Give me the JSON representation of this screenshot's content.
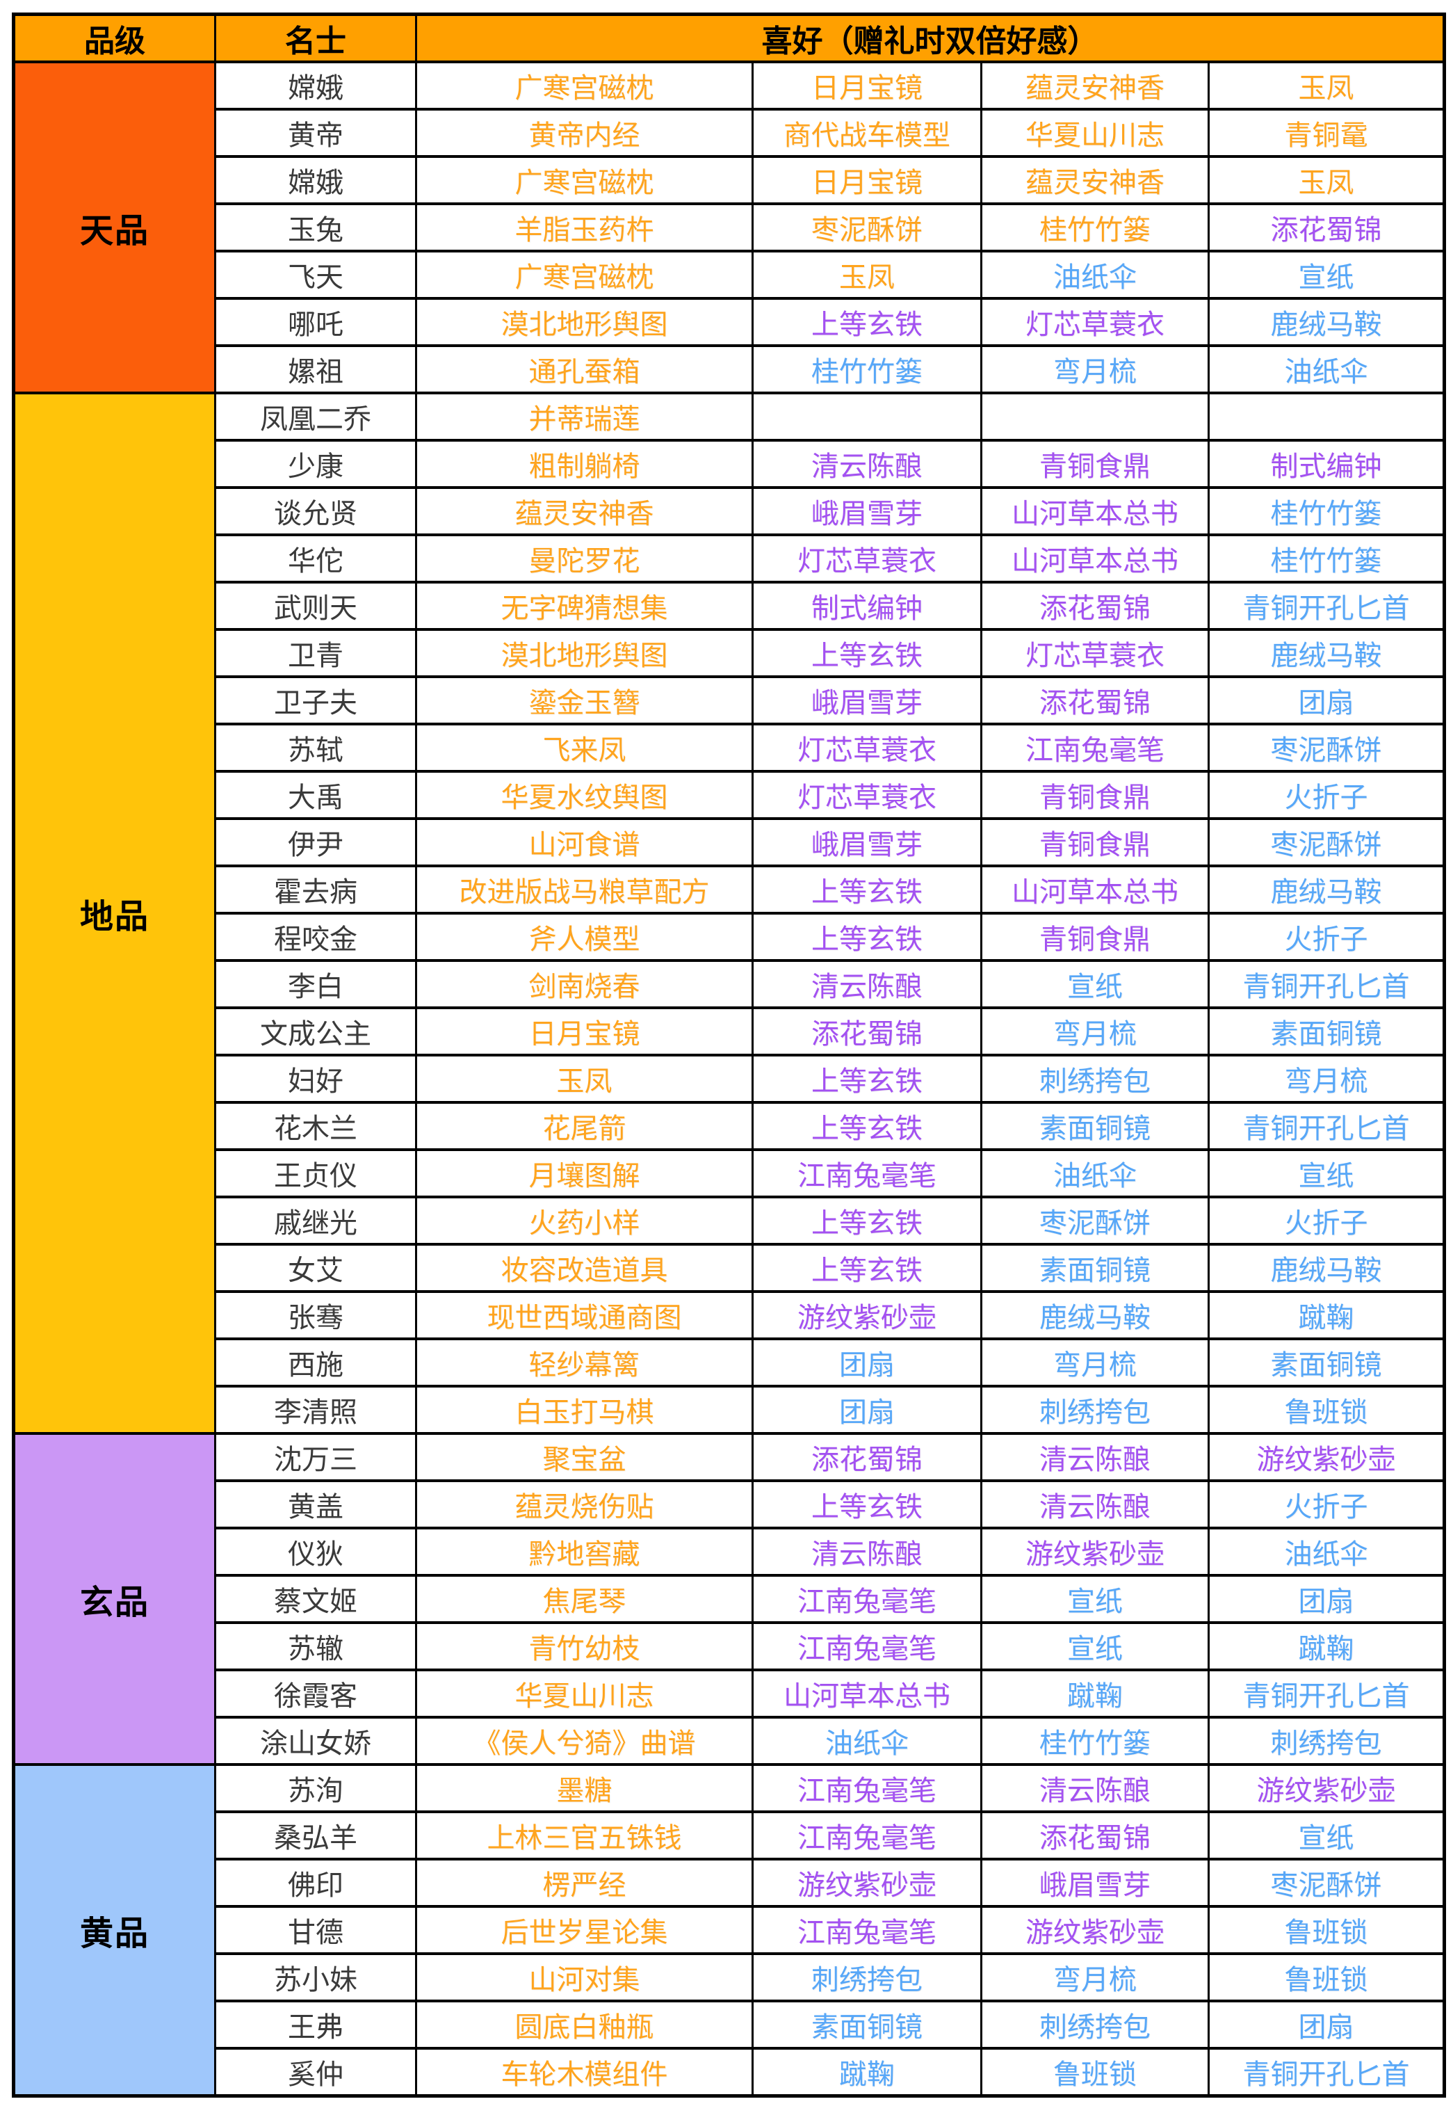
{
  "header": {
    "col_grade": "品级",
    "col_name": "名士",
    "col_likes": "喜好（赠礼时双倍好感）"
  },
  "colors": {
    "header_bg": "#FFA000",
    "grade_tian_bg": "#FB5E0B",
    "grade_di_bg": "#FFC40A",
    "grade_xuan_bg": "#CB97F5",
    "grade_huang_bg": "#9FC7FB",
    "text_orange": "#FFA41E",
    "text_purple": "#A351F1",
    "text_blue": "#57A7F8",
    "name_text": "#3A3A3A",
    "border": "#000000",
    "cell_bg": "#FFFFFF"
  },
  "groups": [
    {
      "grade": "天品",
      "band_color_key": "grade_tian_bg",
      "rows": [
        {
          "name": "嫦娥",
          "items": [
            {
              "t": "广寒宫磁枕",
              "c": "orange"
            },
            {
              "t": "日月宝镜",
              "c": "orange"
            },
            {
              "t": "蕴灵安神香",
              "c": "orange"
            },
            {
              "t": "玉凤",
              "c": "orange"
            }
          ]
        },
        {
          "name": "黄帝",
          "items": [
            {
              "t": "黄帝内经",
              "c": "orange"
            },
            {
              "t": "商代战车模型",
              "c": "orange"
            },
            {
              "t": "华夏山川志",
              "c": "orange"
            },
            {
              "t": "青铜鼋",
              "c": "orange"
            }
          ]
        },
        {
          "name": "嫦娥",
          "items": [
            {
              "t": "广寒宫磁枕",
              "c": "orange"
            },
            {
              "t": "日月宝镜",
              "c": "orange"
            },
            {
              "t": "蕴灵安神香",
              "c": "orange"
            },
            {
              "t": "玉凤",
              "c": "orange"
            }
          ]
        },
        {
          "name": "玉兔",
          "items": [
            {
              "t": "羊脂玉药杵",
              "c": "orange"
            },
            {
              "t": "枣泥酥饼",
              "c": "orange"
            },
            {
              "t": "桂竹竹篓",
              "c": "orange"
            },
            {
              "t": "添花蜀锦",
              "c": "purple"
            }
          ]
        },
        {
          "name": "飞天",
          "items": [
            {
              "t": "广寒宫磁枕",
              "c": "orange"
            },
            {
              "t": "玉凤",
              "c": "orange"
            },
            {
              "t": "油纸伞",
              "c": "blue"
            },
            {
              "t": "宣纸",
              "c": "blue"
            }
          ]
        },
        {
          "name": "哪吒",
          "items": [
            {
              "t": "漠北地形舆图",
              "c": "orange"
            },
            {
              "t": "上等玄铁",
              "c": "purple"
            },
            {
              "t": "灯芯草蓑衣",
              "c": "purple"
            },
            {
              "t": "鹿绒马鞍",
              "c": "blue"
            }
          ]
        },
        {
          "name": "嫘祖",
          "items": [
            {
              "t": "通孔蚕箱",
              "c": "orange"
            },
            {
              "t": "桂竹竹篓",
              "c": "blue"
            },
            {
              "t": "弯月梳",
              "c": "blue"
            },
            {
              "t": "油纸伞",
              "c": "blue"
            }
          ]
        }
      ]
    },
    {
      "grade": "地品",
      "band_color_key": "grade_di_bg",
      "rows": [
        {
          "name": "凤凰二乔",
          "items": [
            {
              "t": "并蒂瑞莲",
              "c": "orange"
            },
            null,
            null,
            null
          ]
        },
        {
          "name": "少康",
          "items": [
            {
              "t": "粗制躺椅",
              "c": "orange"
            },
            {
              "t": "清云陈酿",
              "c": "purple"
            },
            {
              "t": "青铜食鼎",
              "c": "purple"
            },
            {
              "t": "制式编钟",
              "c": "purple"
            }
          ]
        },
        {
          "name": "谈允贤",
          "items": [
            {
              "t": "蕴灵安神香",
              "c": "orange"
            },
            {
              "t": "峨眉雪芽",
              "c": "purple"
            },
            {
              "t": "山河草本总书",
              "c": "purple"
            },
            {
              "t": "桂竹竹篓",
              "c": "blue"
            }
          ]
        },
        {
          "name": "华佗",
          "items": [
            {
              "t": "曼陀罗花",
              "c": "orange"
            },
            {
              "t": "灯芯草蓑衣",
              "c": "purple"
            },
            {
              "t": "山河草本总书",
              "c": "purple"
            },
            {
              "t": "桂竹竹篓",
              "c": "blue"
            }
          ]
        },
        {
          "name": "武则天",
          "items": [
            {
              "t": "无字碑猜想集",
              "c": "orange"
            },
            {
              "t": "制式编钟",
              "c": "purple"
            },
            {
              "t": "添花蜀锦",
              "c": "purple"
            },
            {
              "t": "青铜开孔匕首",
              "c": "blue"
            }
          ]
        },
        {
          "name": "卫青",
          "items": [
            {
              "t": "漠北地形舆图",
              "c": "orange"
            },
            {
              "t": "上等玄铁",
              "c": "purple"
            },
            {
              "t": "灯芯草蓑衣",
              "c": "purple"
            },
            {
              "t": "鹿绒马鞍",
              "c": "blue"
            }
          ]
        },
        {
          "name": "卫子夫",
          "items": [
            {
              "t": "鎏金玉簪",
              "c": "orange"
            },
            {
              "t": "峨眉雪芽",
              "c": "purple"
            },
            {
              "t": "添花蜀锦",
              "c": "purple"
            },
            {
              "t": "团扇",
              "c": "blue"
            }
          ]
        },
        {
          "name": "苏轼",
          "items": [
            {
              "t": "飞来凤",
              "c": "orange"
            },
            {
              "t": "灯芯草蓑衣",
              "c": "purple"
            },
            {
              "t": "江南兔毫笔",
              "c": "purple"
            },
            {
              "t": "枣泥酥饼",
              "c": "blue"
            }
          ]
        },
        {
          "name": "大禹",
          "items": [
            {
              "t": "华夏水纹舆图",
              "c": "orange"
            },
            {
              "t": "灯芯草蓑衣",
              "c": "purple"
            },
            {
              "t": "青铜食鼎",
              "c": "purple"
            },
            {
              "t": "火折子",
              "c": "blue"
            }
          ]
        },
        {
          "name": "伊尹",
          "items": [
            {
              "t": "山河食谱",
              "c": "orange"
            },
            {
              "t": "峨眉雪芽",
              "c": "purple"
            },
            {
              "t": "青铜食鼎",
              "c": "purple"
            },
            {
              "t": "枣泥酥饼",
              "c": "blue"
            }
          ]
        },
        {
          "name": "霍去病",
          "items": [
            {
              "t": "改进版战马粮草配方",
              "c": "orange"
            },
            {
              "t": "上等玄铁",
              "c": "purple"
            },
            {
              "t": "山河草本总书",
              "c": "purple"
            },
            {
              "t": "鹿绒马鞍",
              "c": "blue"
            }
          ]
        },
        {
          "name": "程咬金",
          "items": [
            {
              "t": "斧人模型",
              "c": "orange"
            },
            {
              "t": "上等玄铁",
              "c": "purple"
            },
            {
              "t": "青铜食鼎",
              "c": "purple"
            },
            {
              "t": "火折子",
              "c": "blue"
            }
          ]
        },
        {
          "name": "李白",
          "items": [
            {
              "t": "剑南烧春",
              "c": "orange"
            },
            {
              "t": "清云陈酿",
              "c": "purple"
            },
            {
              "t": "宣纸",
              "c": "blue"
            },
            {
              "t": "青铜开孔匕首",
              "c": "blue"
            }
          ]
        },
        {
          "name": "文成公主",
          "items": [
            {
              "t": "日月宝镜",
              "c": "orange"
            },
            {
              "t": "添花蜀锦",
              "c": "purple"
            },
            {
              "t": "弯月梳",
              "c": "blue"
            },
            {
              "t": "素面铜镜",
              "c": "blue"
            }
          ]
        },
        {
          "name": "妇好",
          "items": [
            {
              "t": "玉凤",
              "c": "orange"
            },
            {
              "t": "上等玄铁",
              "c": "purple"
            },
            {
              "t": "刺绣挎包",
              "c": "blue"
            },
            {
              "t": "弯月梳",
              "c": "blue"
            }
          ]
        },
        {
          "name": "花木兰",
          "items": [
            {
              "t": "花尾箭",
              "c": "orange"
            },
            {
              "t": "上等玄铁",
              "c": "purple"
            },
            {
              "t": "素面铜镜",
              "c": "blue"
            },
            {
              "t": "青铜开孔匕首",
              "c": "blue"
            }
          ]
        },
        {
          "name": "王贞仪",
          "items": [
            {
              "t": "月壤图解",
              "c": "orange"
            },
            {
              "t": "江南兔毫笔",
              "c": "purple"
            },
            {
              "t": "油纸伞",
              "c": "blue"
            },
            {
              "t": "宣纸",
              "c": "blue"
            }
          ]
        },
        {
          "name": "戚继光",
          "items": [
            {
              "t": "火药小样",
              "c": "orange"
            },
            {
              "t": "上等玄铁",
              "c": "purple"
            },
            {
              "t": "枣泥酥饼",
              "c": "blue"
            },
            {
              "t": "火折子",
              "c": "blue"
            }
          ]
        },
        {
          "name": "女艾",
          "items": [
            {
              "t": "妆容改造道具",
              "c": "orange"
            },
            {
              "t": "上等玄铁",
              "c": "purple"
            },
            {
              "t": "素面铜镜",
              "c": "blue"
            },
            {
              "t": "鹿绒马鞍",
              "c": "blue"
            }
          ]
        },
        {
          "name": "张骞",
          "items": [
            {
              "t": "现世西域通商图",
              "c": "orange"
            },
            {
              "t": "游纹紫砂壶",
              "c": "purple"
            },
            {
              "t": "鹿绒马鞍",
              "c": "blue"
            },
            {
              "t": "蹴鞠",
              "c": "blue"
            }
          ]
        },
        {
          "name": "西施",
          "items": [
            {
              "t": "轻纱幕篱",
              "c": "orange"
            },
            {
              "t": "团扇",
              "c": "blue"
            },
            {
              "t": "弯月梳",
              "c": "blue"
            },
            {
              "t": "素面铜镜",
              "c": "blue"
            }
          ]
        },
        {
          "name": "李清照",
          "items": [
            {
              "t": "白玉打马棋",
              "c": "orange"
            },
            {
              "t": "团扇",
              "c": "blue"
            },
            {
              "t": "刺绣挎包",
              "c": "blue"
            },
            {
              "t": "鲁班锁",
              "c": "blue"
            }
          ]
        }
      ]
    },
    {
      "grade": "玄品",
      "band_color_key": "grade_xuan_bg",
      "rows": [
        {
          "name": "沈万三",
          "items": [
            {
              "t": "聚宝盆",
              "c": "orange"
            },
            {
              "t": "添花蜀锦",
              "c": "purple"
            },
            {
              "t": "清云陈酿",
              "c": "purple"
            },
            {
              "t": "游纹紫砂壶",
              "c": "purple"
            }
          ]
        },
        {
          "name": "黄盖",
          "items": [
            {
              "t": "蕴灵烧伤贴",
              "c": "orange"
            },
            {
              "t": "上等玄铁",
              "c": "purple"
            },
            {
              "t": "清云陈酿",
              "c": "purple"
            },
            {
              "t": "火折子",
              "c": "blue"
            }
          ]
        },
        {
          "name": "仪狄",
          "items": [
            {
              "t": "黔地窖藏",
              "c": "orange"
            },
            {
              "t": "清云陈酿",
              "c": "purple"
            },
            {
              "t": "游纹紫砂壶",
              "c": "purple"
            },
            {
              "t": "油纸伞",
              "c": "blue"
            }
          ]
        },
        {
          "name": "蔡文姬",
          "items": [
            {
              "t": "焦尾琴",
              "c": "orange"
            },
            {
              "t": "江南兔毫笔",
              "c": "purple"
            },
            {
              "t": "宣纸",
              "c": "blue"
            },
            {
              "t": "团扇",
              "c": "blue"
            }
          ]
        },
        {
          "name": "苏辙",
          "items": [
            {
              "t": "青竹幼枝",
              "c": "orange"
            },
            {
              "t": "江南兔毫笔",
              "c": "purple"
            },
            {
              "t": "宣纸",
              "c": "blue"
            },
            {
              "t": "蹴鞠",
              "c": "blue"
            }
          ]
        },
        {
          "name": "徐霞客",
          "items": [
            {
              "t": "华夏山川志",
              "c": "orange"
            },
            {
              "t": "山河草本总书",
              "c": "purple"
            },
            {
              "t": "蹴鞠",
              "c": "blue"
            },
            {
              "t": "青铜开孔匕首",
              "c": "blue"
            }
          ]
        },
        {
          "name": "涂山女娇",
          "items": [
            {
              "t": "《侯人兮猗》曲谱",
              "c": "orange"
            },
            {
              "t": "油纸伞",
              "c": "blue"
            },
            {
              "t": "桂竹竹篓",
              "c": "blue"
            },
            {
              "t": "刺绣挎包",
              "c": "blue"
            }
          ]
        }
      ]
    },
    {
      "grade": "黄品",
      "band_color_key": "grade_huang_bg",
      "rows": [
        {
          "name": "苏洵",
          "items": [
            {
              "t": "墨糖",
              "c": "orange"
            },
            {
              "t": "江南兔毫笔",
              "c": "purple"
            },
            {
              "t": "清云陈酿",
              "c": "purple"
            },
            {
              "t": "游纹紫砂壶",
              "c": "purple"
            }
          ]
        },
        {
          "name": "桑弘羊",
          "items": [
            {
              "t": "上林三官五铢钱",
              "c": "orange"
            },
            {
              "t": "江南兔毫笔",
              "c": "purple"
            },
            {
              "t": "添花蜀锦",
              "c": "purple"
            },
            {
              "t": "宣纸",
              "c": "blue"
            }
          ]
        },
        {
          "name": "佛印",
          "items": [
            {
              "t": "楞严经",
              "c": "orange"
            },
            {
              "t": "游纹紫砂壶",
              "c": "purple"
            },
            {
              "t": "峨眉雪芽",
              "c": "purple"
            },
            {
              "t": "枣泥酥饼",
              "c": "blue"
            }
          ]
        },
        {
          "name": "甘德",
          "items": [
            {
              "t": "后世岁星论集",
              "c": "orange"
            },
            {
              "t": "江南兔毫笔",
              "c": "purple"
            },
            {
              "t": "游纹紫砂壶",
              "c": "purple"
            },
            {
              "t": "鲁班锁",
              "c": "blue"
            }
          ]
        },
        {
          "name": "苏小妹",
          "items": [
            {
              "t": "山河对集",
              "c": "orange"
            },
            {
              "t": "刺绣挎包",
              "c": "blue"
            },
            {
              "t": "弯月梳",
              "c": "blue"
            },
            {
              "t": "鲁班锁",
              "c": "blue"
            }
          ]
        },
        {
          "name": "王弗",
          "items": [
            {
              "t": "圆底白釉瓶",
              "c": "orange"
            },
            {
              "t": "素面铜镜",
              "c": "blue"
            },
            {
              "t": "刺绣挎包",
              "c": "blue"
            },
            {
              "t": "团扇",
              "c": "blue"
            }
          ]
        },
        {
          "name": "奚仲",
          "items": [
            {
              "t": "车轮木模组件",
              "c": "orange"
            },
            {
              "t": "蹴鞠",
              "c": "blue"
            },
            {
              "t": "鲁班锁",
              "c": "blue"
            },
            {
              "t": "青铜开孔匕首",
              "c": "blue"
            }
          ]
        }
      ]
    }
  ]
}
